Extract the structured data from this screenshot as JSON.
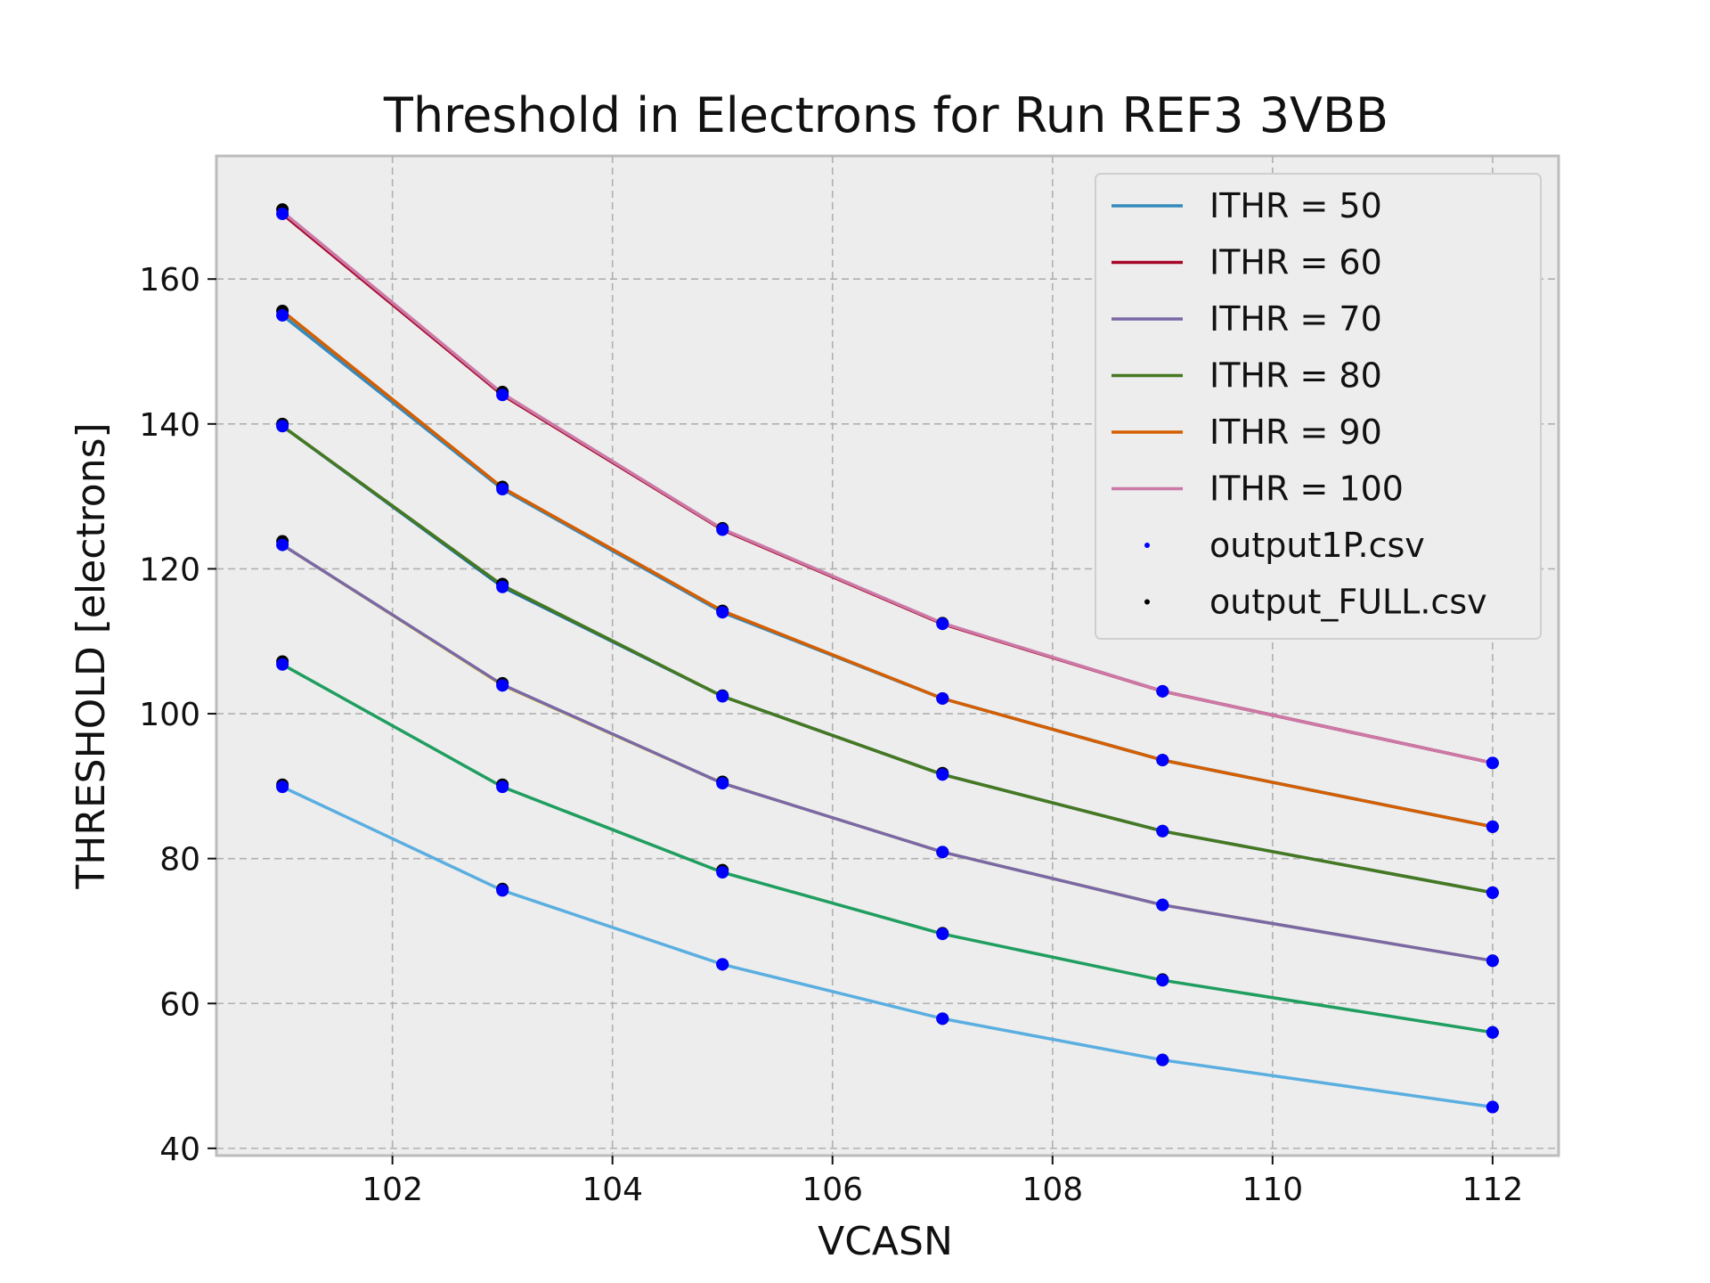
{
  "chart_data": {
    "type": "line",
    "title": "Threshold in Electrons for Run REF3 3VBB",
    "xlabel": "VCASN",
    "ylabel": "THRESHOLD [electrons]",
    "xlim": [
      100.4,
      112.6
    ],
    "ylim": [
      39,
      177
    ],
    "xticks": [
      102,
      104,
      106,
      108,
      110,
      112
    ],
    "yticks": [
      40,
      60,
      80,
      100,
      120,
      140,
      160
    ],
    "grid": true,
    "legend_position": "top-right",
    "x": [
      101,
      103,
      105,
      107,
      109,
      112
    ],
    "series": [
      {
        "name": "",
        "color": "#a50026",
        "values": [
          169.0,
          144.0,
          125.4,
          112.4,
          103.1,
          93.2
        ]
      },
      {
        "name": "",
        "color": "#4682b4",
        "values": [
          155.0,
          131.0,
          114.0,
          102.1,
          93.6,
          84.4
        ]
      },
      {
        "name": "",
        "color": "#1470a8",
        "values": [
          139.7,
          117.5,
          102.4,
          91.6,
          83.8,
          75.3
        ]
      },
      {
        "name": "",
        "color": "#f0e442",
        "values": [
          123.3,
          103.9,
          90.4,
          80.9,
          73.6,
          65.9
        ]
      },
      {
        "name": "",
        "color": "#1f9e5f",
        "values": [
          106.8,
          89.9,
          78.1,
          69.6,
          63.2,
          56.0
        ]
      },
      {
        "name": "",
        "color": "#5aaee0",
        "values": [
          89.9,
          75.6,
          65.4,
          57.9,
          52.2,
          45.7
        ]
      },
      {
        "name": "ITHR = 50",
        "color": "#348abd",
        "values": [
          155.0,
          131.0,
          114.0,
          102.1,
          93.6,
          84.4
        ]
      },
      {
        "name": "ITHR = 60",
        "color": "#a60628",
        "values": [
          169.0,
          144.0,
          125.4,
          112.4,
          103.1,
          93.2
        ]
      },
      {
        "name": "ITHR = 70",
        "color": "#7a68a6",
        "values": [
          123.3,
          104.0,
          90.4,
          80.9,
          73.6,
          65.9
        ]
      },
      {
        "name": "ITHR = 80",
        "color": "#467821",
        "values": [
          139.7,
          117.7,
          102.4,
          91.6,
          83.8,
          75.3
        ]
      },
      {
        "name": "ITHR = 90",
        "color": "#d55e00",
        "values": [
          155.6,
          131.2,
          114.2,
          102.1,
          93.6,
          84.4
        ]
      },
      {
        "name": "ITHR = 100",
        "color": "#cc79a7",
        "values": [
          169.3,
          144.2,
          125.5,
          112.5,
          103.1,
          93.2
        ]
      }
    ],
    "scatter_series": [
      {
        "name": "output1P.csv",
        "color": "#0000ff",
        "values": [
          [
            169.0,
            144.0,
            125.4,
            112.4,
            103.1,
            93.2
          ],
          [
            155.0,
            131.0,
            114.0,
            102.1,
            93.6,
            84.4
          ],
          [
            139.7,
            117.5,
            102.4,
            91.6,
            83.8,
            75.3
          ],
          [
            123.3,
            103.9,
            90.4,
            80.9,
            73.6,
            65.9
          ],
          [
            106.8,
            89.9,
            78.1,
            69.6,
            63.2,
            56.0
          ],
          [
            89.9,
            75.6,
            65.4,
            57.9,
            52.2,
            45.7
          ]
        ]
      },
      {
        "name": "output_FULL.csv",
        "color": "#000000",
        "values": [
          [
            169.6,
            144.4,
            125.6,
            112.5,
            103.1,
            93.2
          ],
          [
            155.6,
            131.3,
            114.2,
            102.1,
            93.6,
            84.4
          ],
          [
            140.0,
            117.9,
            102.5,
            91.8,
            83.8,
            75.3
          ],
          [
            123.8,
            104.2,
            90.6,
            80.9,
            73.6,
            65.9
          ],
          [
            107.2,
            90.2,
            78.4,
            69.7,
            63.3,
            56.0
          ],
          [
            90.2,
            75.8,
            65.4,
            57.9,
            52.2,
            45.7
          ]
        ]
      }
    ]
  }
}
